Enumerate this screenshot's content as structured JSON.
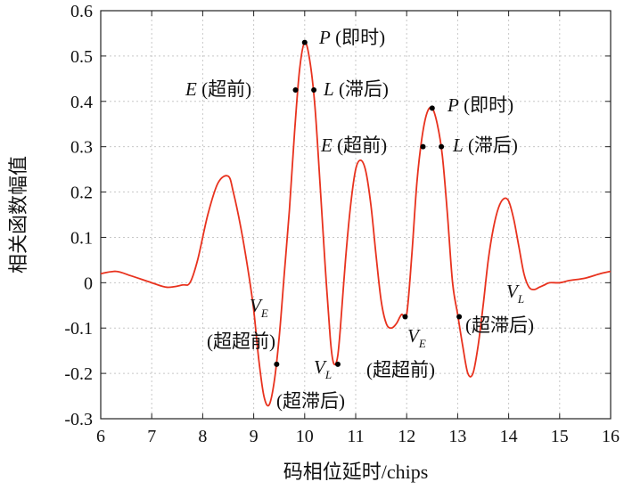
{
  "chart_data": {
    "type": "line",
    "xlabel": "码相位延时/chips",
    "ylabel": "相关函数幅值",
    "xlim": [
      6,
      16
    ],
    "ylim": [
      -0.3,
      0.6
    ],
    "x_ticks": [
      6,
      7,
      8,
      9,
      10,
      11,
      12,
      13,
      14,
      15,
      16
    ],
    "x_tick_labels": [
      "6",
      "7",
      "8",
      "9",
      "10",
      "11",
      "12",
      "13",
      "14",
      "15",
      "16"
    ],
    "y_ticks": [
      0.6,
      0.5,
      0.4,
      0.3,
      0.2,
      0.1,
      0,
      -0.1,
      -0.2,
      -0.3
    ],
    "y_tick_labels": [
      "0.6",
      "0.5",
      "0.4",
      "0.3",
      "0.2",
      "0.1",
      "0",
      "-0.1",
      "-0.2",
      "-0.3"
    ],
    "grid": true,
    "line_color": "#e8321e",
    "series": [
      {
        "x": [
          6.0,
          6.3,
          6.6,
          7.0,
          7.3,
          7.6,
          7.75,
          7.9,
          8.1,
          8.3,
          8.5,
          8.6,
          8.75,
          8.9,
          9.0,
          9.1,
          9.2,
          9.3,
          9.4,
          9.5,
          9.6,
          9.7,
          9.8,
          9.9,
          10.0,
          10.1,
          10.2,
          10.3,
          10.4,
          10.5,
          10.55,
          10.6,
          10.65,
          10.7,
          10.8,
          10.9,
          11.0,
          11.1,
          11.2,
          11.3,
          11.4,
          11.5,
          11.6,
          11.7,
          11.8,
          11.9,
          12.0,
          12.1,
          12.2,
          12.3,
          12.4,
          12.5,
          12.6,
          12.7,
          12.8,
          12.9,
          13.0,
          13.1,
          13.2,
          13.3,
          13.4,
          13.5,
          13.6,
          13.7,
          13.8,
          13.9,
          14.0,
          14.1,
          14.2,
          14.3,
          14.4,
          14.5,
          14.6,
          14.7,
          14.8,
          15.0,
          15.2,
          15.5,
          15.8,
          16.0
        ],
        "y": [
          0.02,
          0.025,
          0.015,
          0.0,
          -0.01,
          -0.005,
          0.0,
          0.05,
          0.15,
          0.22,
          0.235,
          0.2,
          0.12,
          0.02,
          -0.06,
          -0.17,
          -0.25,
          -0.27,
          -0.22,
          -0.12,
          0.02,
          0.16,
          0.33,
          0.47,
          0.53,
          0.49,
          0.39,
          0.22,
          0.04,
          -0.12,
          -0.17,
          -0.18,
          -0.16,
          -0.1,
          0.05,
          0.17,
          0.25,
          0.27,
          0.245,
          0.17,
          0.06,
          -0.04,
          -0.09,
          -0.1,
          -0.09,
          -0.07,
          -0.07,
          0.06,
          0.22,
          0.32,
          0.375,
          0.385,
          0.35,
          0.28,
          0.15,
          0.0,
          -0.07,
          -0.14,
          -0.2,
          -0.2,
          -0.14,
          -0.05,
          0.05,
          0.12,
          0.165,
          0.185,
          0.18,
          0.14,
          0.08,
          0.02,
          -0.01,
          -0.015,
          -0.01,
          -0.005,
          0.0,
          0.0,
          0.005,
          0.01,
          0.02,
          0.025
        ]
      }
    ],
    "annotations": [
      {
        "point": [
          10.0,
          0.53
        ],
        "text": "P (即时)",
        "letter": "P",
        "rest": " (即时)"
      },
      {
        "point": [
          9.82,
          0.425
        ],
        "text": "E (超前)",
        "letter": "E",
        "rest": " (超前)"
      },
      {
        "point": [
          10.18,
          0.425
        ],
        "text": "L (滞后)",
        "letter": "L",
        "rest": " (滞后)"
      },
      {
        "point": [
          12.5,
          0.385
        ],
        "text": "P (即时)",
        "letter": "P",
        "rest": " (即时)"
      },
      {
        "point": [
          12.32,
          0.3
        ],
        "text": "E (超前)",
        "letter": "E",
        "rest": " (超前)"
      },
      {
        "point": [
          12.68,
          0.3
        ],
        "text": "L (滞后)",
        "letter": "L",
        "rest": " (滞后)"
      },
      {
        "point": [
          9.45,
          -0.18
        ],
        "letter": "V",
        "sub": "E",
        "rest": "(超超前)"
      },
      {
        "point": [
          10.65,
          -0.18
        ],
        "letter": "V",
        "sub": "L",
        "rest": "(超滞后)"
      },
      {
        "point": [
          11.97,
          -0.075
        ],
        "letter": "V",
        "sub": "E",
        "rest": "(超超前)"
      },
      {
        "point": [
          13.03,
          -0.075
        ],
        "letter": "V",
        "sub": "L",
        "rest": "(超滞后)"
      }
    ]
  }
}
